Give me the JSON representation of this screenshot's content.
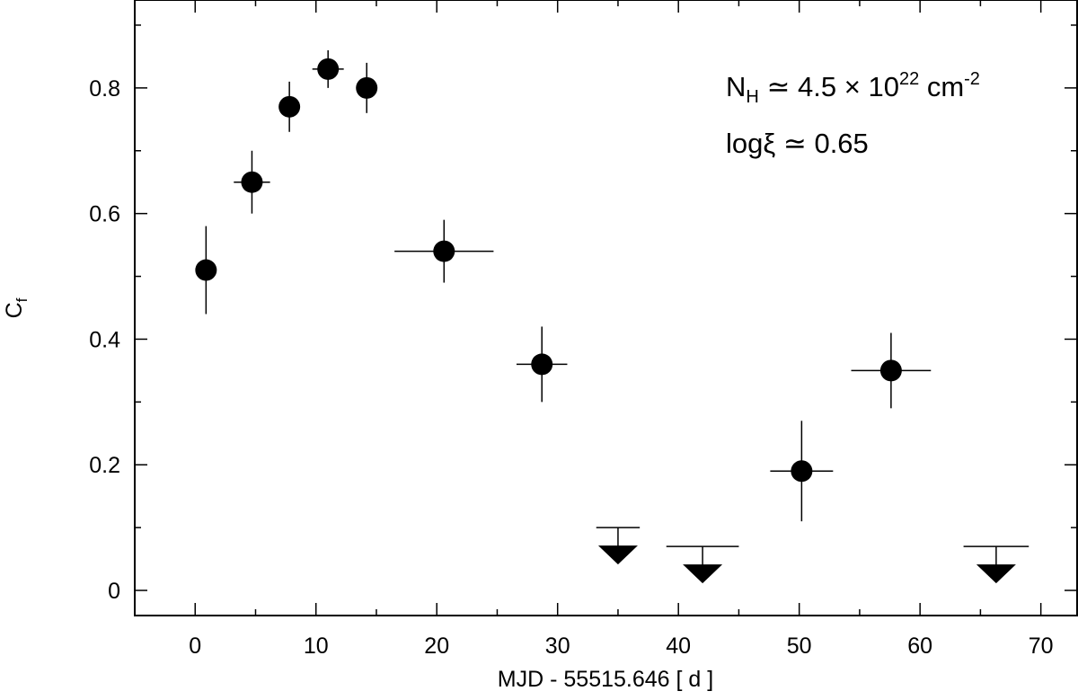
{
  "chart_data": {
    "type": "scatter",
    "xlabel": "MJD - 55515.646 [ d ]",
    "ylabel_main": "C",
    "ylabel_sub": "f",
    "xlim": [
      -5,
      73
    ],
    "ylim": [
      -0.04,
      0.94
    ],
    "xticks": [
      "0",
      "10",
      "20",
      "30",
      "40",
      "50",
      "60",
      "70"
    ],
    "yticks": [
      "0",
      "0.2",
      "0.4",
      "0.6",
      "0.8"
    ],
    "grid": false,
    "points": [
      {
        "x": 0.9,
        "xerr": 0,
        "y": 0.51,
        "ylo": 0.44,
        "yhi": 0.58
      },
      {
        "x": 4.7,
        "xerr": 1.5,
        "y": 0.65,
        "ylo": 0.6,
        "yhi": 0.7
      },
      {
        "x": 7.8,
        "xerr": 0,
        "y": 0.77,
        "ylo": 0.73,
        "yhi": 0.81
      },
      {
        "x": 11.0,
        "xerr": 1.3,
        "y": 0.83,
        "ylo": 0.8,
        "yhi": 0.86
      },
      {
        "x": 14.2,
        "xerr": 0.8,
        "y": 0.8,
        "ylo": 0.76,
        "yhi": 0.84
      },
      {
        "x": 20.6,
        "xerr": 4.1,
        "y": 0.54,
        "ylo": 0.49,
        "yhi": 0.59
      },
      {
        "x": 28.7,
        "xerr": 2.1,
        "y": 0.36,
        "ylo": 0.3,
        "yhi": 0.42
      },
      {
        "x": 50.2,
        "xerr": 2.6,
        "y": 0.19,
        "ylo": 0.11,
        "yhi": 0.27
      },
      {
        "x": 57.6,
        "xerr": 3.3,
        "y": 0.35,
        "ylo": 0.29,
        "yhi": 0.41
      }
    ],
    "upper_limits": [
      {
        "x": 35.0,
        "xerr": 1.8,
        "y": 0.1
      },
      {
        "x": 42.0,
        "xerr": 3.0,
        "y": 0.07
      },
      {
        "x": 66.3,
        "xerr": 2.7,
        "y": 0.07
      }
    ]
  },
  "annotations": {
    "nh_base": "N",
    "nh_sub": "H",
    "nh_mid": " ≃ 4.5 × 10",
    "nh_exp": "22",
    "nh_unit": " cm",
    "nh_unit_exp": "-2",
    "logxi": "logξ ≃ 0.65"
  },
  "colors": {
    "marker": "#000000",
    "axes": "#000000",
    "background": "#ffffff"
  }
}
